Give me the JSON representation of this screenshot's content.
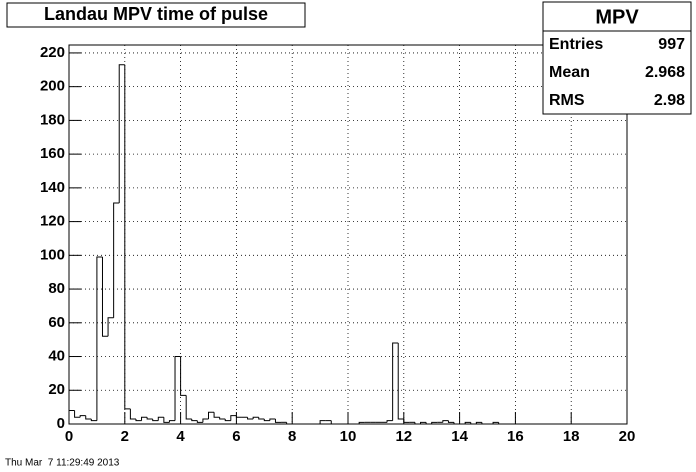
{
  "chart_data": {
    "type": "histogram",
    "title": "Landau MPV time of pulse",
    "bins": [
      0,
      0.2,
      0.4,
      0.6,
      0.8,
      1,
      1.2,
      1.4,
      1.6,
      1.8,
      2,
      2.2,
      2.4,
      2.6,
      2.8,
      3,
      3.2,
      3.4,
      3.6,
      3.8,
      4,
      4.2,
      4.4,
      4.6,
      4.8,
      5,
      5.2,
      5.4,
      5.6,
      5.8,
      6,
      6.2,
      6.4,
      6.6,
      6.8,
      7,
      7.2,
      7.4,
      7.6,
      7.8,
      8,
      8.2,
      8.4,
      8.6,
      8.8,
      9,
      9.2,
      9.4,
      9.6,
      9.8,
      10,
      10.2,
      10.4,
      10.6,
      10.8,
      11,
      11.2,
      11.4,
      11.6,
      11.8,
      12,
      12.2,
      12.4,
      12.6,
      12.8,
      13,
      13.2,
      13.4,
      13.6,
      13.8,
      14,
      14.2,
      14.4,
      14.6,
      14.8,
      15,
      15.2,
      15.4,
      15.6,
      15.8,
      16,
      16.2,
      16.4,
      16.6,
      16.8,
      17,
      17.2,
      17.4,
      17.6,
      17.8,
      18,
      18.2,
      18.4,
      18.6,
      18.8,
      19,
      19.2,
      19.4,
      19.6,
      19.8,
      20
    ],
    "values": [
      8,
      4,
      5,
      3,
      2,
      99,
      52,
      63,
      131,
      213,
      9,
      3,
      2,
      4,
      3,
      2,
      4,
      1,
      2,
      40,
      17,
      3,
      2,
      1,
      3,
      7,
      4,
      3,
      2,
      5,
      4,
      4,
      3,
      4,
      3,
      2,
      3,
      1,
      1,
      0,
      0,
      0,
      0,
      0,
      0,
      2,
      2,
      0,
      0,
      0,
      0,
      0,
      1,
      1,
      1,
      1,
      1,
      2,
      48,
      3,
      1,
      1,
      0,
      1,
      0,
      1,
      1,
      2,
      1,
      0,
      0,
      1,
      0,
      1,
      0,
      0,
      1,
      0,
      0,
      0,
      0,
      0,
      0,
      0,
      0,
      0,
      0,
      0,
      0,
      0,
      0,
      0,
      0,
      0,
      0,
      0,
      0,
      0,
      0,
      0
    ],
    "color": "#000000",
    "xlim": [
      0,
      20
    ],
    "xticks": [
      0,
      2,
      4,
      6,
      8,
      10,
      12,
      14,
      16,
      18,
      20
    ],
    "ylim": [
      0,
      224.7
    ],
    "yticks": [
      0,
      20,
      40,
      60,
      80,
      100,
      120,
      140,
      160,
      180,
      200,
      220
    ],
    "grid": true,
    "stats": {
      "title": "MPV",
      "rows": [
        {
          "label": "Entries",
          "value": 997
        },
        {
          "label": "Mean",
          "value": 2.968
        },
        {
          "label": "RMS",
          "value": 2.98
        }
      ]
    },
    "timestamp": "Thu Mar  7 11:29:49 2013"
  }
}
